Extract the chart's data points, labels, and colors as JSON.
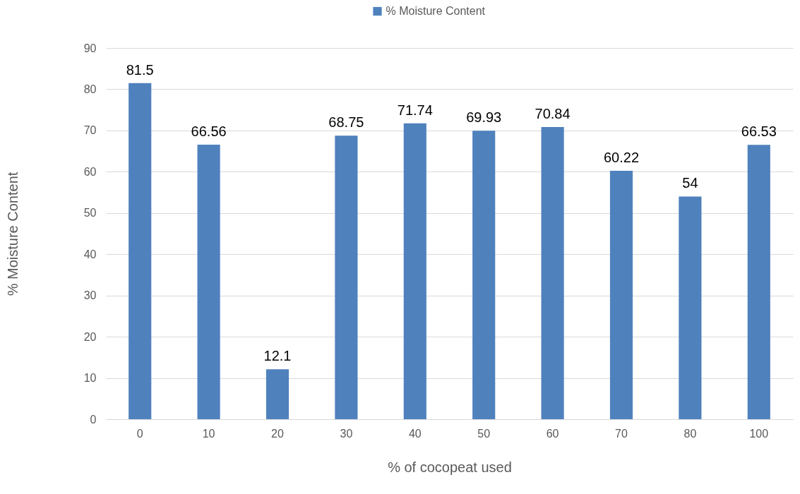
{
  "chart_data": {
    "type": "bar",
    "xlabel": "% of cocopeat used",
    "ylabel": "% Moisture Content",
    "categories": [
      "0",
      "10",
      "20",
      "30",
      "40",
      "50",
      "60",
      "70",
      "80",
      "100"
    ],
    "series": [
      {
        "name": "% Moisture Content",
        "color": "#4f81bd",
        "values": [
          81.5,
          66.56,
          12.1,
          68.75,
          71.74,
          69.93,
          70.84,
          60.22,
          54,
          66.53
        ]
      }
    ],
    "ylim": [
      0,
      90
    ],
    "yticks": [
      0,
      10,
      20,
      30,
      40,
      50,
      60,
      70,
      80,
      90
    ],
    "grid": "y",
    "legend": "top",
    "data_labels": true
  }
}
